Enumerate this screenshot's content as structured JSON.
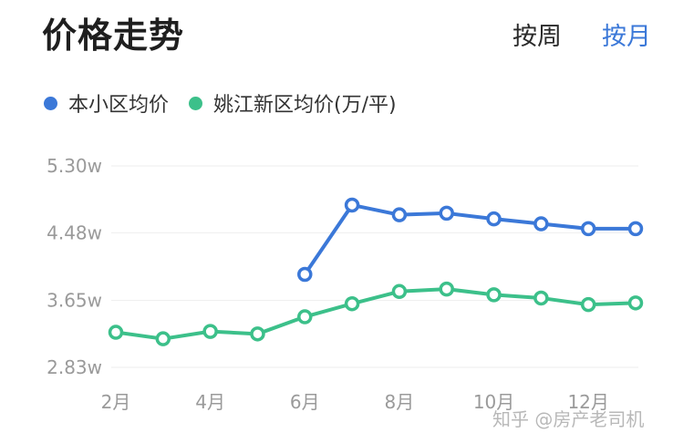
{
  "header": {
    "title": "价格走势",
    "toggle_week": "按周",
    "toggle_month": "按月"
  },
  "watermark": "知乎 @房产老司机",
  "colors": {
    "community": "#3b78d8",
    "district": "#3cc08a",
    "accent": "#3b78d8"
  },
  "chart_data": {
    "type": "line",
    "title": "",
    "xlabel": "",
    "ylabel": "",
    "x": [
      2,
      3,
      4,
      5,
      6,
      7,
      8,
      9,
      10,
      11,
      12,
      13
    ],
    "x_tick_values": [
      2,
      4,
      6,
      8,
      10,
      12
    ],
    "x_tick_labels": [
      "2月",
      "4月",
      "6月",
      "8月",
      "10月",
      "12月"
    ],
    "y_tick_labels": [
      "5.30w",
      "4.48w",
      "3.65w",
      "2.83w"
    ],
    "y_ticks": [
      5.3,
      4.48,
      3.65,
      2.83
    ],
    "ylim": [
      2.83,
      5.3
    ],
    "grid": true,
    "legend_position": "top-left",
    "series": [
      {
        "name": "本小区均价",
        "color": "#3b78d8",
        "values": [
          null,
          null,
          null,
          null,
          3.97,
          4.82,
          4.7,
          4.72,
          4.65,
          4.59,
          4.53,
          4.53
        ]
      },
      {
        "name": "姚江新区均价(万/平)",
        "color": "#3cc08a",
        "values": [
          3.26,
          3.18,
          3.27,
          3.24,
          3.45,
          3.61,
          3.76,
          3.79,
          3.72,
          3.68,
          3.6,
          3.62
        ]
      }
    ]
  }
}
